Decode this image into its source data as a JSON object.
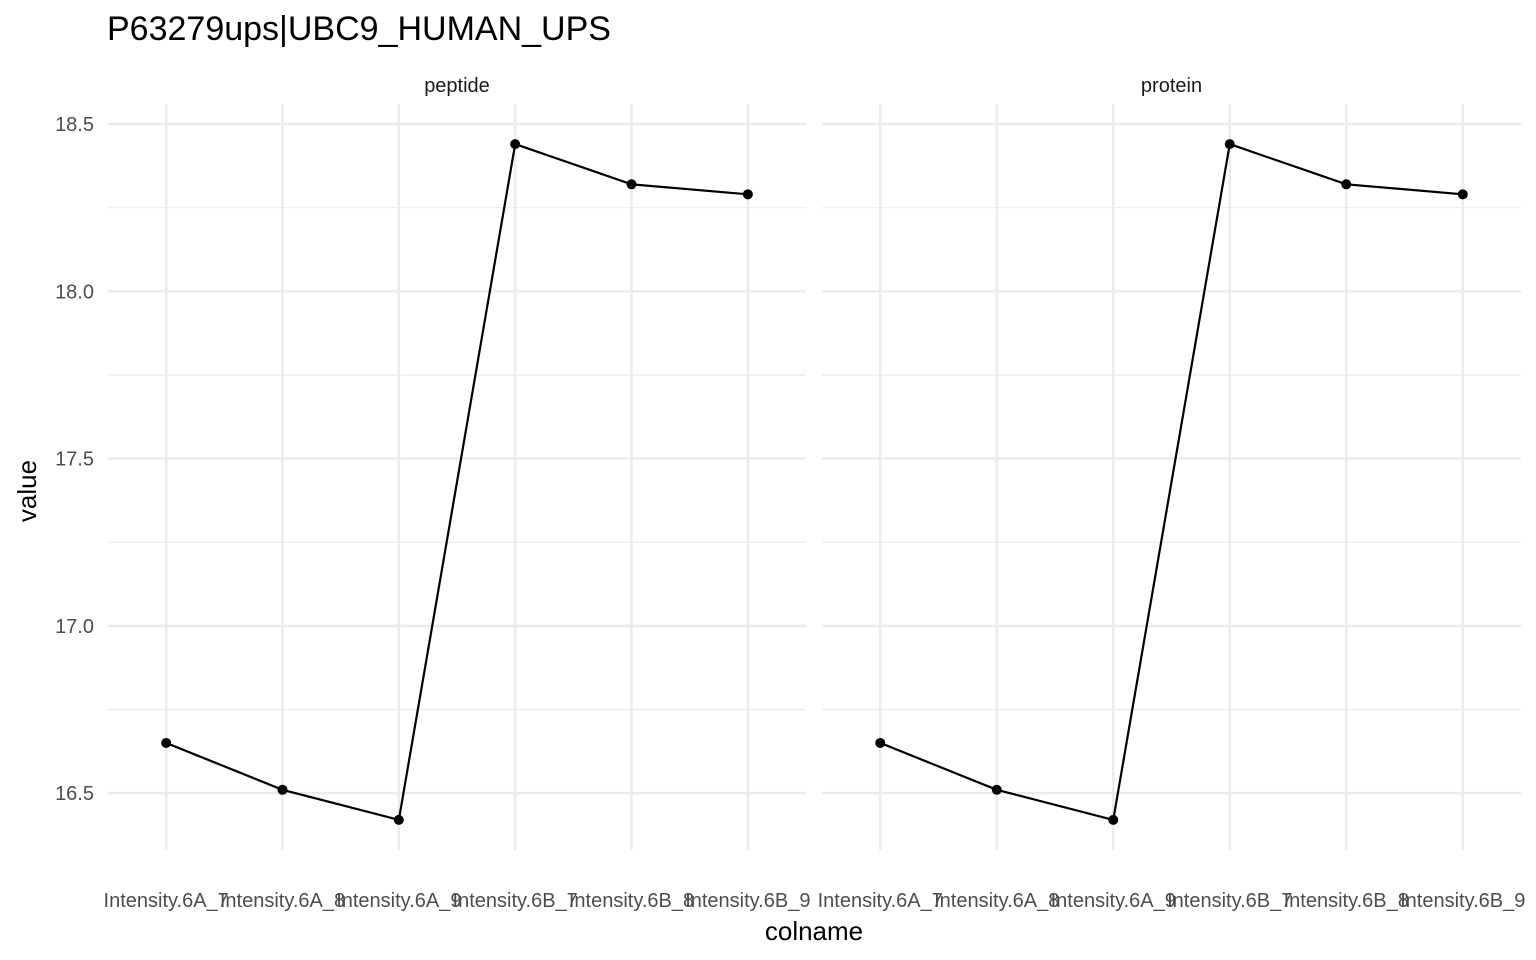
{
  "chart_data": {
    "type": "line",
    "title": "P63279ups|UBC9_HUMAN_UPS",
    "xlabel": "colname",
    "ylabel": "value",
    "categories": [
      "Intensity.6A_7",
      "Intensity.6A_8",
      "Intensity.6A_9",
      "Intensity.6B_7",
      "Intensity.6B_8",
      "Intensity.6B_9"
    ],
    "yticks": [
      "16.5",
      "17.0",
      "17.5",
      "18.0",
      "18.5"
    ],
    "ylim": [
      16.33,
      18.56
    ],
    "grid": true,
    "panels": [
      {
        "label": "peptide",
        "values": [
          16.65,
          16.51,
          16.42,
          18.44,
          18.32,
          18.29
        ]
      },
      {
        "label": "protein",
        "values": [
          16.65,
          16.51,
          16.42,
          18.44,
          18.32,
          18.29
        ]
      }
    ]
  }
}
